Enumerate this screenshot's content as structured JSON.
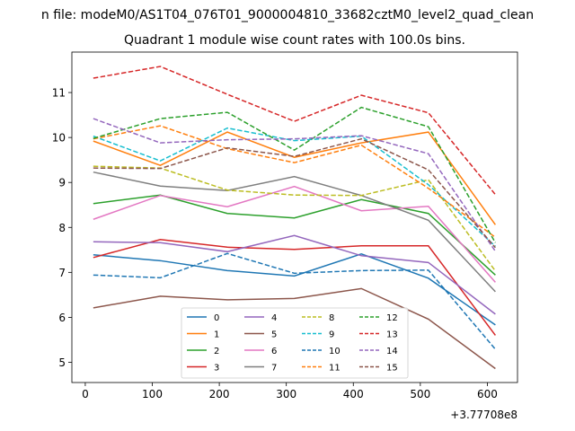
{
  "chart_data": {
    "type": "line",
    "suptitle": "n file: modeM0/AS1T04_076T01_9000004810_33682cztM0_level2_quad_clean",
    "title": "Quadrant 1 module wise count rates with 100.0s bins.",
    "xlabel": "",
    "ylabel": "",
    "offset_text": "+3.77708e8",
    "x": [
      12,
      112,
      212,
      312,
      412,
      512,
      612
    ],
    "xlim": [
      -20,
      645
    ],
    "ylim": [
      4.55,
      11.9
    ],
    "xticks": [
      0,
      100,
      200,
      300,
      400,
      500,
      600
    ],
    "yticks": [
      5,
      6,
      7,
      8,
      9,
      10,
      11
    ],
    "legend_location": "lower center",
    "series": [
      {
        "name": "0",
        "color": "#1f77b4",
        "dash": "solid",
        "values": [
          7.39,
          7.26,
          7.04,
          6.92,
          7.41,
          6.87,
          5.83
        ]
      },
      {
        "name": "1",
        "color": "#ff7f0e",
        "dash": "solid",
        "values": [
          9.92,
          9.38,
          10.12,
          9.56,
          9.88,
          10.12,
          8.06
        ]
      },
      {
        "name": "2",
        "color": "#2ca02c",
        "dash": "solid",
        "values": [
          8.53,
          8.72,
          8.31,
          8.21,
          8.62,
          8.31,
          6.94
        ]
      },
      {
        "name": "3",
        "color": "#d62728",
        "dash": "solid",
        "values": [
          7.33,
          7.73,
          7.56,
          7.51,
          7.59,
          7.59,
          5.6
        ]
      },
      {
        "name": "4",
        "color": "#9467bd",
        "dash": "solid",
        "values": [
          7.68,
          7.66,
          7.46,
          7.82,
          7.37,
          7.22,
          6.07
        ]
      },
      {
        "name": "5",
        "color": "#8c564b",
        "dash": "solid",
        "values": [
          6.21,
          6.47,
          6.39,
          6.42,
          6.64,
          5.96,
          4.86
        ]
      },
      {
        "name": "6",
        "color": "#e377c2",
        "dash": "solid",
        "values": [
          8.18,
          8.71,
          8.46,
          8.91,
          8.37,
          8.47,
          6.78
        ]
      },
      {
        "name": "7",
        "color": "#7f7f7f",
        "dash": "solid",
        "values": [
          9.23,
          8.92,
          8.82,
          9.13,
          8.71,
          8.16,
          6.57
        ]
      },
      {
        "name": "8",
        "color": "#bcbd22",
        "dash": "dashed",
        "values": [
          9.36,
          9.32,
          8.83,
          8.72,
          8.71,
          9.06,
          7.03
        ]
      },
      {
        "name": "9",
        "color": "#17becf",
        "dash": "dashed",
        "values": [
          10.03,
          9.48,
          10.21,
          9.93,
          10.03,
          8.95,
          7.58
        ]
      },
      {
        "name": "10",
        "color": "#1f77b4",
        "dash": "dashed",
        "values": [
          6.94,
          6.88,
          7.42,
          6.98,
          7.04,
          7.05,
          5.29
        ]
      },
      {
        "name": "11",
        "color": "#ff7f0e",
        "dash": "dashed",
        "values": [
          9.97,
          10.26,
          9.75,
          9.44,
          9.83,
          8.87,
          7.78
        ]
      },
      {
        "name": "12",
        "color": "#2ca02c",
        "dash": "dashed",
        "values": [
          9.98,
          10.42,
          10.56,
          9.72,
          10.67,
          10.24,
          7.66
        ]
      },
      {
        "name": "13",
        "color": "#d62728",
        "dash": "dashed",
        "values": [
          11.32,
          11.58,
          10.96,
          10.36,
          10.94,
          10.55,
          8.73
        ]
      },
      {
        "name": "14",
        "color": "#9467bd",
        "dash": "dashed",
        "values": [
          10.42,
          9.88,
          9.95,
          9.97,
          10.04,
          9.64,
          7.47
        ]
      },
      {
        "name": "15",
        "color": "#8c564b",
        "dash": "dashed",
        "values": [
          9.32,
          9.31,
          9.77,
          9.58,
          9.97,
          9.28,
          7.55
        ]
      }
    ]
  }
}
